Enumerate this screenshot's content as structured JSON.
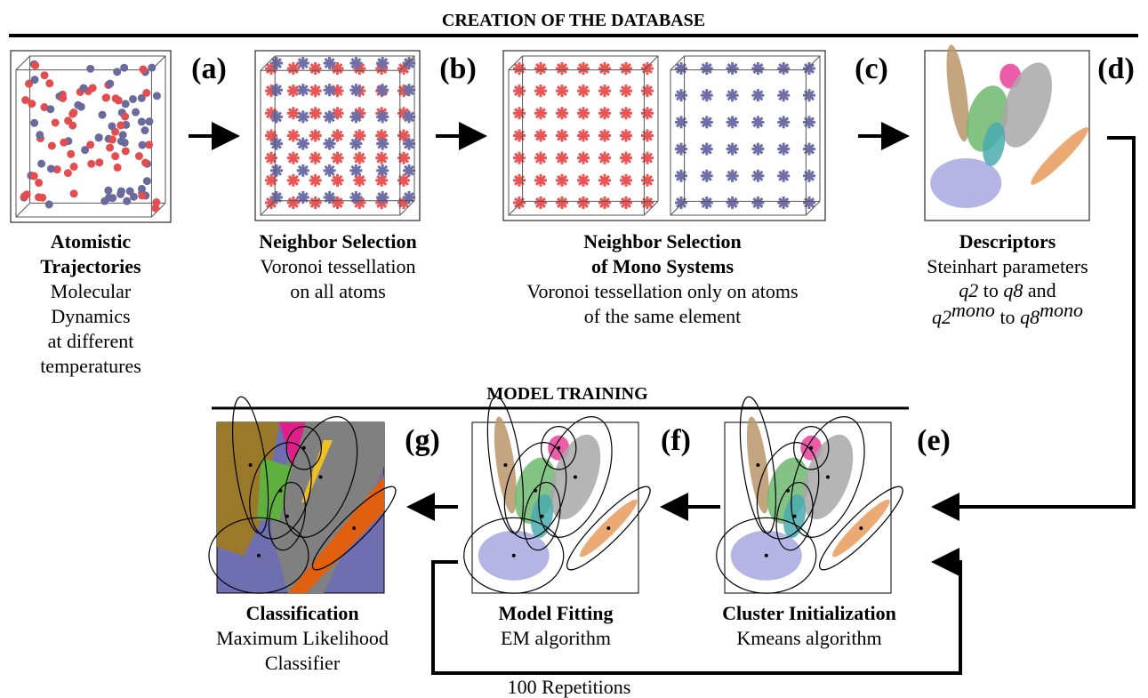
{
  "sections": {
    "database": "CREATION OF THE DATABASE",
    "training": "MODEL TRAINING"
  },
  "panels": [
    {
      "label": "(a)",
      "title": [
        "Atomistic",
        "Trajectories"
      ],
      "description": [
        "Molecular",
        "Dynamics",
        "at different",
        "temperatures"
      ]
    },
    {
      "label": "(b)",
      "title": [
        "Neighbor Selection"
      ],
      "description": [
        "Voronoi tessellation",
        "on all atoms"
      ]
    },
    {
      "label": "(c)",
      "title": [
        "Neighbor Selection",
        "of Mono Systems"
      ],
      "description": [
        "Voronoi tessellation only on atoms",
        "of the same element"
      ]
    },
    {
      "label": "(d)",
      "title": [
        "Descriptors"
      ],
      "description": [
        "Steinhart parameters"
      ],
      "math": [
        "q2",
        "to",
        "q8",
        "and",
        "q2",
        "mono",
        "to",
        "q8",
        "mono"
      ]
    },
    {
      "label": "(e)",
      "title": [
        "Cluster Initialization"
      ],
      "description": [
        "Kmeans algorithm"
      ]
    },
    {
      "label": "(f)",
      "title": [
        "Model Fitting"
      ],
      "description": [
        "EM algorithm"
      ]
    },
    {
      "label": "(g)",
      "title": [
        "Classification"
      ],
      "description": [
        "Maximum Likelihood",
        "Classifier"
      ]
    }
  ],
  "loop": "100 Repetitions"
}
